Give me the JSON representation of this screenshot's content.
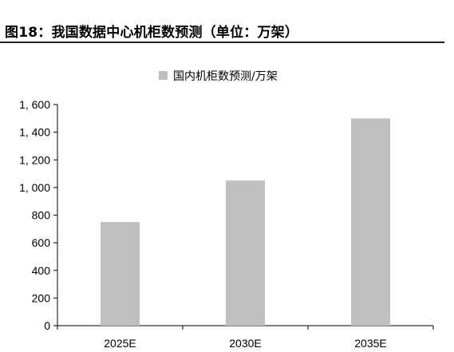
{
  "figure": {
    "title": "图18：我国数据中心机柜数预测（单位：万架）"
  },
  "chart_data": {
    "type": "bar",
    "categories": [
      "2025E",
      "2030E",
      "2035E"
    ],
    "series": [
      {
        "name": "国内机柜数预测/万架",
        "values": [
          750,
          1050,
          1500
        ],
        "color": "#bfbfbf"
      }
    ],
    "title": "",
    "xlabel": "",
    "ylabel": "",
    "ylim": [
      0,
      1600
    ],
    "yticks": [
      0,
      200,
      400,
      600,
      800,
      1000,
      1200,
      1400,
      1600
    ],
    "ytick_labels": [
      "0",
      "200",
      "400",
      "600",
      "800",
      "1, 000",
      "1, 200",
      "1, 400",
      "1, 600"
    ],
    "grid": false,
    "legend_position": "top-center"
  }
}
